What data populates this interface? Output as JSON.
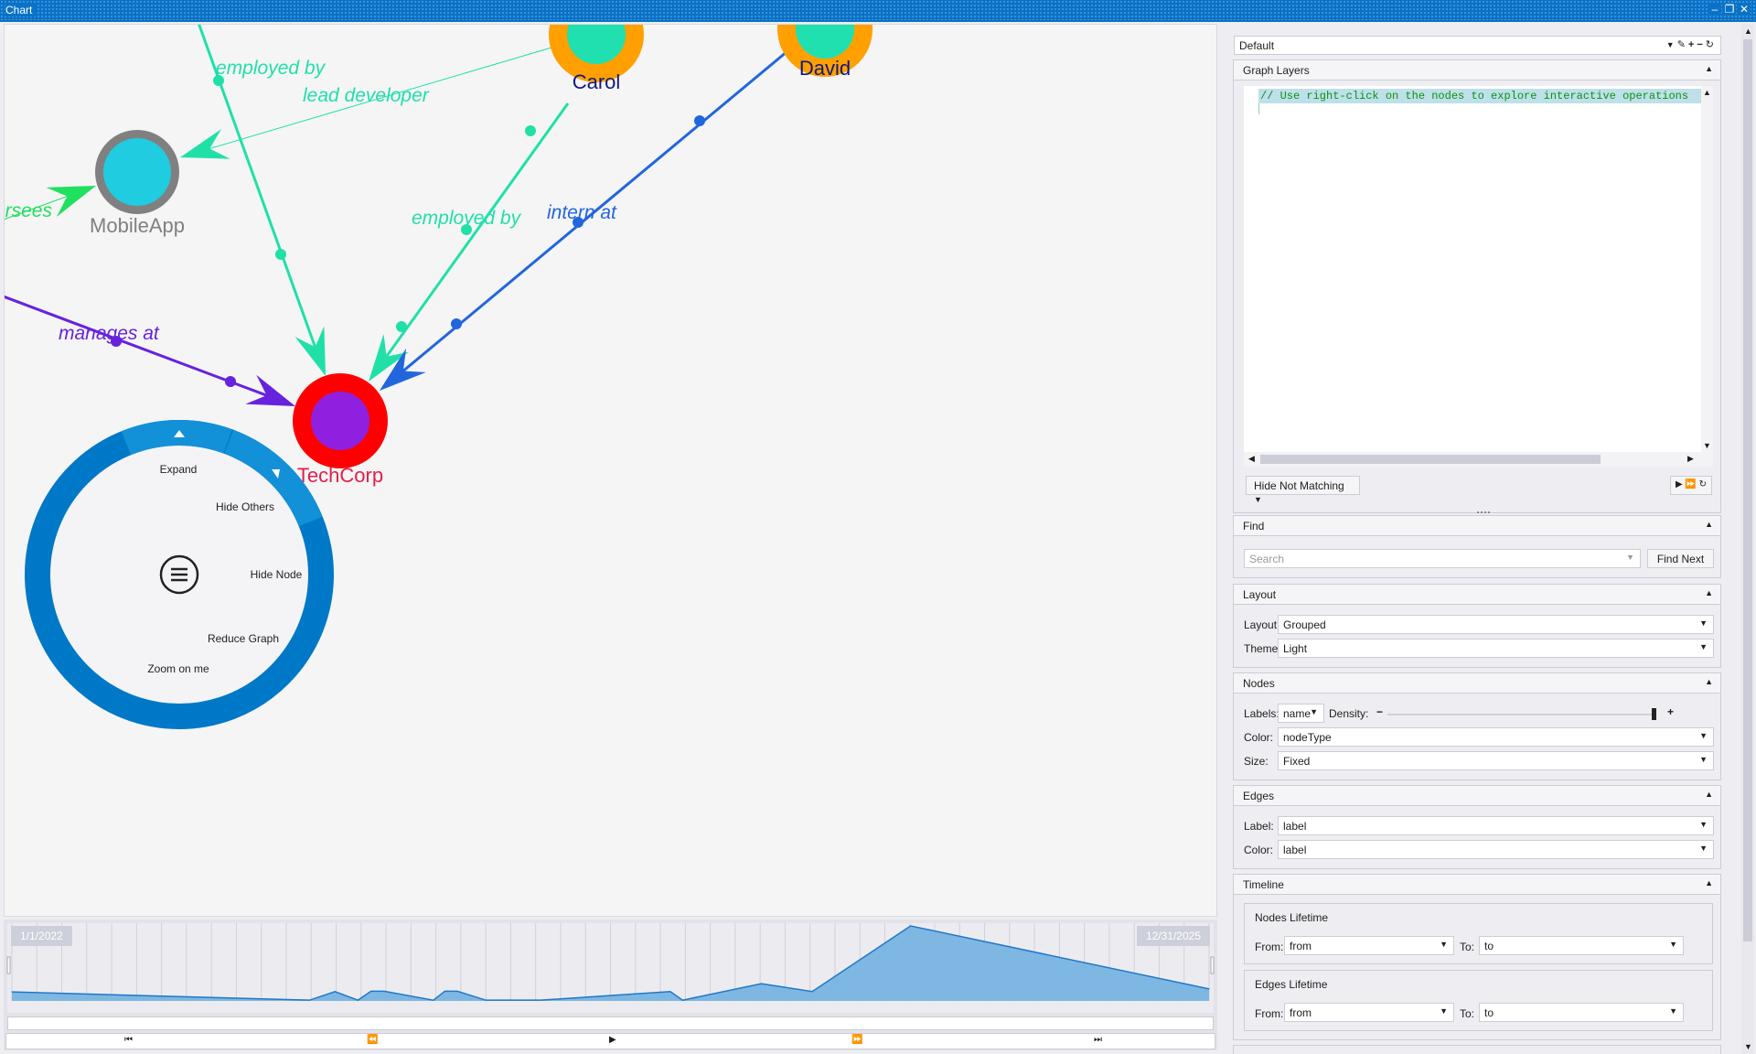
{
  "window": {
    "title": "Chart",
    "controls": [
      "minimize-icon",
      "restore-icon",
      "close-icon"
    ]
  },
  "graph": {
    "nodes": [
      {
        "name": "TechCorp",
        "ring": "#ff0000",
        "fill": "#9020e0",
        "label_color": "#e0204a"
      },
      {
        "name": "MobileApp",
        "ring": "#808080",
        "fill": "#20cce0",
        "label_color": "#808080"
      },
      {
        "name": "Carol",
        "ring": "#ffa000",
        "fill": "#20e0b0",
        "label_color": "#101880"
      },
      {
        "name": "David",
        "ring": "#ffa000",
        "fill": "#20e0b0",
        "label_color": "#101880"
      }
    ],
    "edges": [
      {
        "label": "employed by",
        "color": "#20e0a8"
      },
      {
        "label": "lead developer",
        "color": "#20e0a8"
      },
      {
        "label": "oversees",
        "color": "#20e060"
      },
      {
        "label": "employed by",
        "color": "#20e0a8"
      },
      {
        "label": "intern at",
        "color": "#2266dd"
      },
      {
        "label": "manages at",
        "color": "#6622dd"
      }
    ]
  },
  "radial_menu": {
    "items": [
      "Expand",
      "Hide Others",
      "Hide Node",
      "Reduce Graph",
      "Zoom on me"
    ],
    "center_icon": "hamburger-menu-icon",
    "ring_color": "#0078c8",
    "highlight_color": "#1290d8"
  },
  "timeline": {
    "start_label": "1/1/2022",
    "end_label": "12/31/2025",
    "controls": [
      "skip-to-start-icon",
      "step-back-icon",
      "play-icon",
      "step-forward-icon",
      "skip-to-end-icon"
    ],
    "chart_data": {
      "type": "area",
      "x": [
        "2022-01-01",
        "2022-12-30",
        "2023-01-30",
        "2023-02-27",
        "2023-03-15",
        "2023-03-31",
        "2023-05-30",
        "2023-06-13",
        "2023-06-28",
        "2023-08-02",
        "2023-10-08",
        "2024-03-14",
        "2024-03-29",
        "2024-07-03",
        "2024-09-03",
        "2025-01-01",
        "2025-12-31"
      ],
      "values": [
        12,
        1,
        12.5,
        1,
        13,
        13,
        1,
        13,
        13,
        1,
        1,
        12.5,
        1,
        23,
        12.5,
        100,
        16
      ],
      "xlim": [
        "2022-01-01",
        "2025-12-31"
      ],
      "ylim": [
        0,
        100
      ],
      "grid": true,
      "color": "#78b4e0"
    }
  },
  "panel": {
    "profile": "Default",
    "profile_icons": [
      "dropdown-icon",
      "edit-icon",
      "add-icon",
      "remove-icon",
      "reset-icon"
    ],
    "graph_layers": {
      "title": "Graph Layers",
      "code": "// Use right-click on the nodes to explore interactive operations",
      "filter_mode": "Hide Not Matching"
    },
    "find": {
      "title": "Find",
      "placeholder": "Search",
      "button": "Find Next"
    },
    "layout": {
      "title": "Layout",
      "layout_label": "Layout:",
      "layout_value": "Grouped",
      "theme_label": "Theme:",
      "theme_value": "Light"
    },
    "nodes": {
      "title": "Nodes",
      "labels_label": "Labels:",
      "labels_value": "name",
      "density_label": "Density:",
      "density": 100,
      "color_label": "Color:",
      "color_value": "nodeType",
      "size_label": "Size:",
      "size_value": "Fixed"
    },
    "edges": {
      "title": "Edges",
      "label_label": "Label:",
      "label_value": "label",
      "color_label": "Color:",
      "color_value": "label"
    },
    "timeline": {
      "title": "Timeline",
      "nodes_lifetime": "Nodes Lifetime",
      "edges_lifetime": "Edges Lifetime",
      "from_label": "From:",
      "to_label": "To:",
      "nodes_from": "from",
      "nodes_to": "to",
      "edges_from": "from",
      "edges_to": "to"
    }
  }
}
